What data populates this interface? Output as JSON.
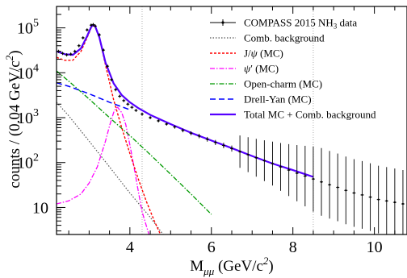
{
  "chart_data": {
    "type": "line",
    "xlabel_base": "M",
    "xlabel_sub": "μμ",
    "xlabel_rest": " (GeV/c",
    "xlabel_sup": "2",
    "xlabel_close": ")",
    "ylabel_base": "counts / (0.04 GeV/c",
    "ylabel_sup": "2",
    "ylabel_close": ")",
    "x_ticks": [
      {
        "value": 4,
        "label": "4"
      },
      {
        "value": 6,
        "label": "6"
      },
      {
        "value": 8,
        "label": "8"
      },
      {
        "value": 10,
        "label": "10"
      }
    ],
    "y_ticks": [
      {
        "value": 10,
        "base": "10",
        "sup": ""
      },
      {
        "value": 100,
        "base": "10",
        "sup": "2"
      },
      {
        "value": 1000,
        "base": "10",
        "sup": "3"
      },
      {
        "value": 10000,
        "base": "10",
        "sup": "4"
      },
      {
        "value": 100000,
        "base": "10",
        "sup": "5"
      }
    ],
    "xlim": [
      2.2,
      10.8
    ],
    "ylim": [
      2.5,
      300000
    ],
    "y_scale": "log",
    "vertical_lines": [
      4.3,
      8.5
    ],
    "legend_position": "top-right",
    "series": [
      {
        "key": "data",
        "name_parts": [
          "COMPASS 2015 NH",
          "3",
          " data"
        ],
        "color": "#000000",
        "style": "points",
        "x": [
          2.25,
          2.35,
          2.45,
          2.55,
          2.65,
          2.75,
          2.85,
          2.95,
          3.05,
          3.1,
          3.15,
          3.25,
          3.35,
          3.45,
          3.55,
          3.65,
          3.75,
          3.85,
          3.95,
          4.05,
          4.15,
          4.3,
          4.5,
          4.7,
          4.9,
          5.1,
          5.3,
          5.5,
          5.7,
          5.9,
          6.1,
          6.3,
          6.5,
          6.7,
          6.9,
          7.1,
          7.3,
          7.5,
          7.7,
          7.9,
          8.1,
          8.3,
          8.5,
          8.7,
          8.9,
          9.1,
          9.3,
          9.5,
          9.7,
          9.9,
          10.1,
          10.3,
          10.5,
          10.7
        ],
        "y": [
          30000,
          27000,
          25000,
          26000,
          30000,
          40000,
          60000,
          90000,
          115000,
          118000,
          110000,
          70000,
          32000,
          14000,
          7000,
          4200,
          3000,
          2400,
          2000,
          1700,
          1450,
          1200,
          1000,
          850,
          720,
          620,
          520,
          450,
          390,
          330,
          280,
          240,
          205,
          175,
          150,
          128,
          110,
          95,
          80,
          68,
          58,
          50,
          43,
          37,
          32,
          28,
          24,
          21,
          19,
          17,
          15,
          14,
          13,
          12
        ]
      },
      {
        "key": "comb",
        "name_parts": [
          "Comb. background"
        ],
        "color": "#555555",
        "style": "dotted",
        "x": [
          2.2,
          2.5,
          3.0,
          3.5,
          4.0,
          4.5,
          5.0
        ],
        "y": [
          2200,
          1100,
          300,
          80,
          21,
          6,
          1.5
        ]
      },
      {
        "key": "jpsi",
        "name_parts": [
          "J/",
          "ψ",
          " (MC)"
        ],
        "color": "#ff0000",
        "style": "dashed-fine",
        "x": [
          2.2,
          2.4,
          2.6,
          2.8,
          2.95,
          3.05,
          3.1,
          3.15,
          3.25,
          3.4,
          3.6,
          3.8,
          4.0,
          4.2,
          4.4,
          4.6,
          4.8,
          5.0
        ],
        "y": [
          22000,
          19000,
          19000,
          30000,
          60000,
          100000,
          112000,
          105000,
          60000,
          15000,
          2500,
          600,
          160,
          45,
          14,
          5,
          2,
          0.8
        ]
      },
      {
        "key": "psip",
        "name_parts": [
          "ψ",
          "′ (MC)"
        ],
        "color": "#ff00ff",
        "style": "dashdot",
        "x": [
          2.2,
          2.5,
          2.8,
          3.0,
          3.2,
          3.4,
          3.5,
          3.6,
          3.65,
          3.7,
          3.8,
          3.9,
          4.0,
          4.1,
          4.2,
          4.3,
          4.5,
          4.8
        ],
        "y": [
          12,
          14,
          20,
          35,
          80,
          300,
          650,
          1300,
          1600,
          1700,
          1300,
          700,
          250,
          80,
          25,
          8,
          2,
          0.5
        ]
      },
      {
        "key": "charm",
        "name_parts": [
          "Open-charm (MC)"
        ],
        "color": "#009900",
        "style": "dashdot",
        "x": [
          2.2,
          2.5,
          3.0,
          3.5,
          4.0,
          4.5,
          5.0,
          5.5,
          6.0
        ],
        "y": [
          11000,
          6500,
          2600,
          1000,
          400,
          150,
          55,
          20,
          7
        ]
      },
      {
        "key": "dy",
        "name_parts": [
          "Drell-Yan (MC)"
        ],
        "color": "#0000ff",
        "style": "dashed",
        "x": [
          2.2,
          2.5,
          3.0,
          3.5,
          4.0
        ],
        "y": [
          6000,
          5000,
          3400,
          2200,
          1500
        ]
      },
      {
        "key": "total",
        "name_parts": [
          "Total MC + Comb. background"
        ],
        "color": "#5500ff",
        "style": "solid-thick",
        "x": [
          2.2,
          2.4,
          2.6,
          2.8,
          2.95,
          3.05,
          3.1,
          3.15,
          3.25,
          3.4,
          3.6,
          3.8,
          4.0,
          4.2,
          4.5,
          5.0,
          5.5,
          6.0,
          6.5,
          7.0,
          7.5,
          8.0,
          8.5
        ],
        "y": [
          30000,
          26000,
          25000,
          35000,
          65000,
          105000,
          115000,
          108000,
          62000,
          17000,
          5800,
          3200,
          2200,
          1650,
          1150,
          720,
          460,
          310,
          210,
          140,
          95,
          68,
          48
        ]
      }
    ]
  }
}
